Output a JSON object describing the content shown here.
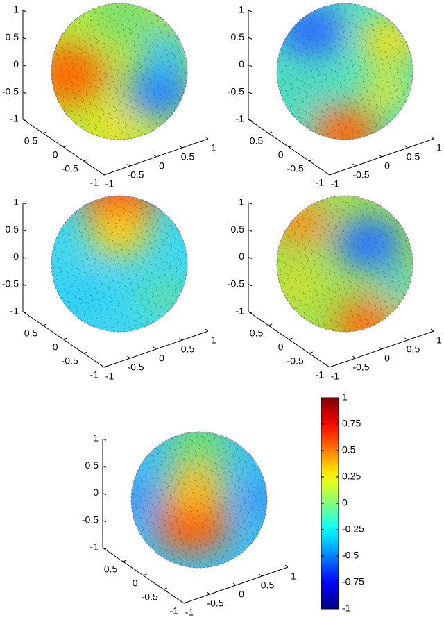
{
  "chart_data": [
    {
      "type": "surface",
      "colormap": "jet",
      "xlim": [
        -1,
        1
      ],
      "ylim": [
        -1,
        1
      ],
      "zlim": [
        -1,
        1
      ],
      "xticks": [
        -1,
        -0.5,
        0,
        0.5,
        1
      ],
      "yticks": [
        -1,
        -0.5,
        0,
        0.5
      ],
      "zticks": [
        -1,
        -0.5,
        0,
        0.5,
        1
      ]
    },
    {
      "type": "surface",
      "colormap": "jet",
      "xlim": [
        -1,
        1
      ],
      "ylim": [
        -1,
        1
      ],
      "zlim": [
        -1,
        1
      ],
      "xticks": [
        -1,
        -0.5,
        0,
        0.5,
        1
      ],
      "yticks": [
        -1,
        -0.5,
        0,
        0.5
      ],
      "zticks": [
        -1,
        -0.5,
        0,
        0.5,
        1
      ]
    },
    {
      "type": "surface",
      "colormap": "jet",
      "xlim": [
        -1,
        1
      ],
      "ylim": [
        -1,
        1
      ],
      "zlim": [
        -1,
        1
      ],
      "xticks": [
        -1,
        -0.5,
        0,
        0.5,
        1
      ],
      "yticks": [
        -1,
        -0.5,
        0,
        0.5
      ],
      "zticks": [
        -1,
        -0.5,
        0,
        0.5,
        1
      ]
    },
    {
      "type": "surface",
      "colormap": "jet",
      "xlim": [
        -1,
        1
      ],
      "ylim": [
        -1,
        1
      ],
      "zlim": [
        -1,
        1
      ],
      "xticks": [
        -1,
        -0.5,
        0,
        0.5,
        1
      ],
      "yticks": [
        -1,
        -0.5,
        0,
        0.5
      ],
      "zticks": [
        -1,
        -0.5,
        0,
        0.5,
        1
      ]
    },
    {
      "type": "surface",
      "colormap": "jet",
      "xlim": [
        -1,
        1
      ],
      "ylim": [
        -1,
        1
      ],
      "zlim": [
        -1,
        1
      ],
      "xticks": [
        -1,
        -0.5,
        0,
        0.5,
        1
      ],
      "yticks": [
        -1,
        -0.5,
        0,
        0.5
      ],
      "zticks": [
        -1,
        -0.5,
        0,
        0.5,
        1
      ],
      "clim": [
        -1,
        1
      ],
      "cticks": [
        -1,
        -0.75,
        -0.5,
        -0.25,
        0,
        0.25,
        0.5,
        0.75,
        1
      ]
    }
  ]
}
